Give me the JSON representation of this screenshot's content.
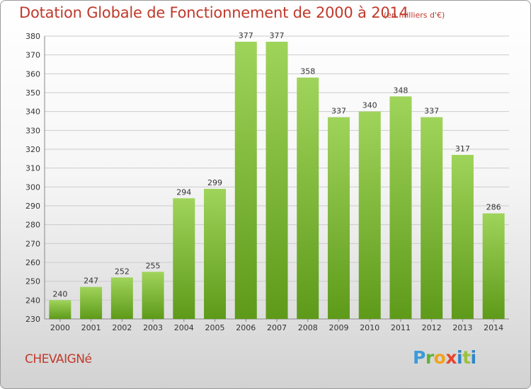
{
  "header": {
    "title": "Dotation Globale de Fonctionnement de 2000 à 2014",
    "subtitle": "(en milliers d'€)"
  },
  "footer": {
    "commune": "CHEVAIGNé",
    "logo_text": "Proxiti"
  },
  "colors": {
    "title": "#c0392b",
    "bar_top": "#9fd45a",
    "bar_bottom": "#5e9a1a",
    "grid": "#cccccc",
    "axis_text": "#333333"
  },
  "chart_data": {
    "type": "bar",
    "title": "Dotation Globale de Fonctionnement de 2000 à 2014",
    "xlabel": "",
    "ylabel": "",
    "categories": [
      "2000",
      "2001",
      "2002",
      "2003",
      "2004",
      "2005",
      "2006",
      "2007",
      "2008",
      "2009",
      "2010",
      "2011",
      "2012",
      "2013",
      "2014"
    ],
    "values": [
      240,
      247,
      252,
      255,
      294,
      299,
      377,
      377,
      358,
      337,
      340,
      348,
      337,
      317,
      286
    ],
    "ylim": [
      230,
      380
    ],
    "yticks": [
      230,
      240,
      250,
      260,
      270,
      280,
      290,
      300,
      310,
      320,
      330,
      340,
      350,
      360,
      370,
      380
    ],
    "grid": true,
    "legend": "none"
  }
}
